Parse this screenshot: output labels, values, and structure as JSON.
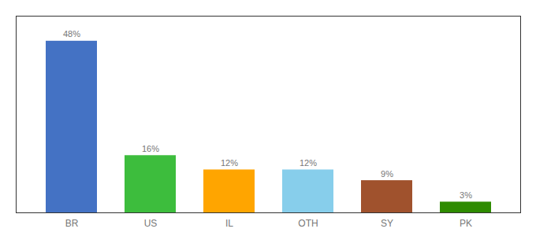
{
  "chart_data": {
    "type": "bar",
    "categories": [
      "BR",
      "US",
      "IL",
      "OTH",
      "SY",
      "PK"
    ],
    "values": [
      48,
      16,
      12,
      12,
      9,
      3
    ],
    "value_labels": [
      "48%",
      "16%",
      "12%",
      "12%",
      "9%",
      "3%"
    ],
    "colors": [
      "#4472C4",
      "#3DBD3D",
      "#FFA500",
      "#87CEEB",
      "#A0522D",
      "#2E8B00"
    ],
    "ylim": [
      0,
      55
    ],
    "grid": false,
    "data_labels": true,
    "tick_labels": "x"
  }
}
